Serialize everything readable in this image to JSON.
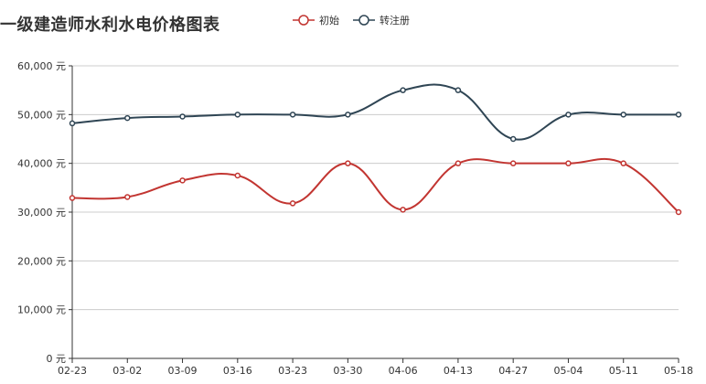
{
  "chart_data": {
    "type": "line",
    "title": "一级建造师水利水电价格图表",
    "categories": [
      "02-23",
      "03-02",
      "03-09",
      "03-16",
      "03-23",
      "03-30",
      "04-06",
      "04-13",
      "04-27",
      "05-04",
      "05-11",
      "05-18"
    ],
    "series": [
      {
        "name": "初始",
        "color": "#c23531",
        "values": [
          32900,
          33100,
          36500,
          37500,
          31800,
          40000,
          30500,
          40000,
          40000,
          40000,
          40000,
          30000
        ]
      },
      {
        "name": "转注册",
        "color": "#2f4554",
        "values": [
          48200,
          49300,
          49600,
          50000,
          50000,
          50000,
          55000,
          55000,
          45000,
          50000,
          50000,
          50000
        ]
      }
    ],
    "ylim": [
      0,
      60000
    ],
    "yticks": [
      0,
      10000,
      20000,
      30000,
      40000,
      50000,
      60000
    ],
    "ytick_labels": [
      "0 元",
      "10,000 元",
      "20,000 元",
      "30,000 元",
      "40,000 元",
      "50,000 元",
      "60,000 元"
    ],
    "grid": true,
    "legend_position": "top-center"
  }
}
